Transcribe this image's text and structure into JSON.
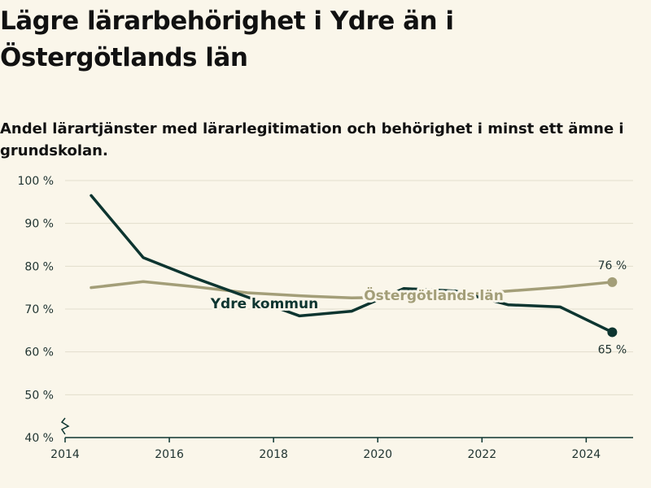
{
  "title": "Lägre lärarbehörighet i Ydre än i Östergötlands län",
  "subtitle": "Andel lärartjänster med lärarlegitimation och behörighet i minst ett ämne i grundskolan.",
  "chart_data": {
    "type": "line",
    "x_ticks": [
      "2014",
      "2016",
      "2018",
      "2020",
      "2022",
      "2024"
    ],
    "y_ticks": [
      "100 %",
      "90 %",
      "80 %",
      "70 %",
      "60 %",
      "50 %",
      "40 %"
    ],
    "xlim": [
      2014,
      2024.9
    ],
    "ylim": [
      40,
      100
    ],
    "grid": true,
    "axis_break": true,
    "series": [
      {
        "name": "Östergötlands län",
        "color": "#a39e78",
        "x": [
          2014.5,
          2015.5,
          2016.5,
          2017.5,
          2018.5,
          2019.5,
          2020.5,
          2021.5,
          2022.5,
          2023.5,
          2024.5
        ],
        "values": [
          75,
          76.4,
          75.2,
          73.8,
          73.1,
          72.6,
          72.8,
          73.2,
          74.2,
          75.1,
          76.3
        ],
        "end_label": "76 %"
      },
      {
        "name": "Ydre kommun",
        "color": "#0d3530",
        "x": [
          2014.5,
          2015.5,
          2016.5,
          2017.5,
          2018.5,
          2019.5,
          2020.5,
          2021.5,
          2022.5,
          2023.5,
          2024.5
        ],
        "values": [
          96.5,
          82,
          77.2,
          72.8,
          68.4,
          69.5,
          74.8,
          74.2,
          71,
          70.5,
          64.6
        ],
        "end_label": "65 %"
      }
    ]
  }
}
